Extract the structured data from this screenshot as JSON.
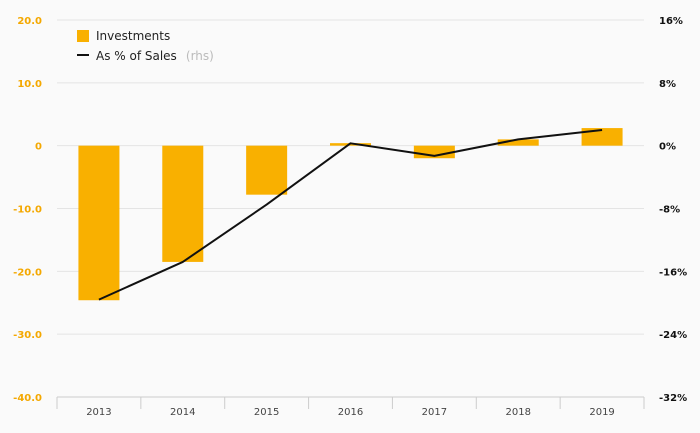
{
  "chart_data": {
    "type": "bar",
    "categories": [
      "2013",
      "2014",
      "2015",
      "2016",
      "2017",
      "2018",
      "2019"
    ],
    "series": [
      {
        "name": "Investments",
        "type": "bar",
        "axis": "left",
        "color": "#f9b000",
        "values": [
          -24.6,
          -18.5,
          -7.8,
          0.4,
          -2.0,
          1.0,
          2.8
        ]
      },
      {
        "name": "As % of Sales",
        "axis_note": "(rhs)",
        "type": "line",
        "axis": "right",
        "color": "#111111",
        "values": [
          -19.6,
          -14.8,
          -7.5,
          0.3,
          -1.3,
          0.8,
          2.0
        ]
      }
    ],
    "y_left": {
      "ylim": [
        -40,
        20
      ],
      "ticks": [
        20,
        10,
        0,
        -10,
        -20,
        -30,
        -40
      ],
      "tick_labels": [
        "20.0",
        "10.0",
        "0",
        "-10.0",
        "-20.0",
        "-30.0",
        "-40.0"
      ],
      "color": "#f4a800"
    },
    "y_right": {
      "ylim": [
        -32,
        16
      ],
      "ticks": [
        16,
        8,
        0,
        -8,
        -16,
        -24,
        -32
      ],
      "tick_labels": [
        "16%",
        "8%",
        "0%",
        "-8%",
        "-16%",
        "-24%",
        "-32%"
      ],
      "color": "#111111"
    },
    "grid": true,
    "legend": "top-left"
  }
}
